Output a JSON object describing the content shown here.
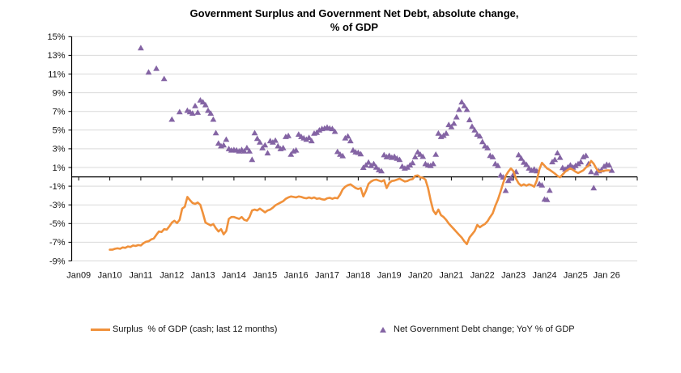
{
  "title": {
    "line1": "Government Surplus and Government Net Debt, absolute change,",
    "line2": "% of GDP"
  },
  "legend": {
    "surplus": {
      "label": "Surplus  % of GDP (cash; last 12 months)"
    },
    "debt": {
      "label": "Net Government Debt change; YoY % of GDP"
    }
  },
  "colors": {
    "surplus_line": "#F0913B",
    "debt_marker": "#8464A4",
    "gridline": "#D9D9D9",
    "axis": "#000000",
    "text": "#141414"
  },
  "chart_data": {
    "type": "combo-line-scatter",
    "title": "Government Surplus and Government Net Debt, absolute change, % of GDP",
    "x_unit": "months since Jan 2009",
    "x_tick_months": [
      0,
      12,
      24,
      36,
      48,
      60,
      72,
      84,
      96,
      108,
      120,
      132,
      144,
      156,
      168,
      180,
      192,
      204
    ],
    "x_tick_labels": [
      "Jan09",
      "Jan10",
      "Jan11",
      "Jan12",
      "Jan13",
      "Jan14",
      "Jan15",
      "Jan16",
      "Jan17",
      "Jan18",
      "Jan19",
      "Jan20",
      "Jan21",
      "Jan22",
      "Jan23",
      "Jan24",
      "Jan25",
      "Jan 26"
    ],
    "ylim": [
      -9,
      15
    ],
    "y_tick_step": 2,
    "y_tick_labels": [
      "15%",
      "13%",
      "11%",
      "9%",
      "7%",
      "5%",
      "3%",
      "1%",
      "-1%",
      "-3%",
      "-5%",
      "-7%",
      "-9%"
    ],
    "grid": true,
    "legend_position": "bottom",
    "series": [
      {
        "name": "Surplus % of GDP (cash; last 12 months)",
        "type": "line",
        "color": "#F0913B",
        "start_month": 12,
        "values": [
          -7.8,
          -7.8,
          -7.7,
          -7.65,
          -7.7,
          -7.55,
          -7.6,
          -7.45,
          -7.5,
          -7.35,
          -7.4,
          -7.3,
          -7.35,
          -7.1,
          -6.95,
          -6.9,
          -6.7,
          -6.6,
          -6.2,
          -5.85,
          -5.9,
          -5.6,
          -5.65,
          -5.3,
          -4.9,
          -4.7,
          -4.95,
          -4.6,
          -3.4,
          -3.2,
          -2.15,
          -2.5,
          -2.8,
          -2.9,
          -2.75,
          -3.0,
          -3.9,
          -4.9,
          -5.05,
          -5.2,
          -5.05,
          -5.5,
          -5.85,
          -5.6,
          -6.15,
          -5.8,
          -4.5,
          -4.3,
          -4.3,
          -4.4,
          -4.5,
          -4.3,
          -4.6,
          -4.7,
          -4.3,
          -3.6,
          -3.5,
          -3.6,
          -3.4,
          -3.6,
          -3.8,
          -3.6,
          -3.5,
          -3.3,
          -3.05,
          -2.9,
          -2.75,
          -2.6,
          -2.35,
          -2.2,
          -2.1,
          -2.15,
          -2.2,
          -2.1,
          -2.15,
          -2.25,
          -2.3,
          -2.2,
          -2.3,
          -2.2,
          -2.35,
          -2.3,
          -2.4,
          -2.45,
          -2.3,
          -2.25,
          -2.35,
          -2.25,
          -2.3,
          -1.9,
          -1.35,
          -1.05,
          -0.9,
          -0.8,
          -1.0,
          -1.2,
          -1.3,
          -1.2,
          -2.1,
          -1.5,
          -0.75,
          -0.5,
          -0.35,
          -0.3,
          -0.4,
          -0.5,
          -0.35,
          -1.2,
          -0.65,
          -0.45,
          -0.4,
          -0.3,
          -0.2,
          -0.35,
          -0.5,
          -0.45,
          -0.3,
          -0.25,
          0.1,
          0.15,
          -0.05,
          -0.1,
          -0.3,
          -1.2,
          -2.5,
          -3.6,
          -4.0,
          -3.5,
          -4.1,
          -4.3,
          -4.6,
          -5.0,
          -5.3,
          -5.6,
          -5.9,
          -6.2,
          -6.5,
          -6.9,
          -7.2,
          -6.5,
          -6.15,
          -5.8,
          -5.15,
          -5.4,
          -5.2,
          -5.05,
          -4.75,
          -4.3,
          -3.9,
          -3.1,
          -2.45,
          -1.6,
          -0.7,
          0.1,
          0.55,
          0.9,
          0.6,
          -0.2,
          -0.7,
          -0.95,
          -0.8,
          -0.95,
          -0.8,
          -0.9,
          -1.05,
          -0.4,
          0.8,
          1.5,
          1.2,
          0.9,
          0.75,
          0.55,
          0.35,
          0.1,
          -0.05,
          0.25,
          0.55,
          0.75,
          0.9,
          0.75,
          0.55,
          0.4,
          0.55,
          0.7,
          1.0,
          1.2,
          1.7,
          1.4,
          0.9,
          0.55,
          0.6,
          0.65,
          0.7,
          0.7
        ]
      },
      {
        "name": "Net Government Debt change; YoY % of GDP",
        "type": "scatter",
        "marker": "triangle",
        "color": "#8464A4",
        "points": [
          [
            24,
            13.8
          ],
          [
            27,
            11.2
          ],
          [
            30,
            11.6
          ],
          [
            33,
            10.5
          ],
          [
            36,
            6.15
          ],
          [
            39,
            6.95
          ],
          [
            42,
            7.1
          ],
          [
            43,
            6.95
          ],
          [
            44,
            6.8
          ],
          [
            45,
            7.6
          ],
          [
            46,
            6.9
          ],
          [
            47,
            8.2
          ],
          [
            48,
            8.0
          ],
          [
            49,
            7.7
          ],
          [
            50,
            7.1
          ],
          [
            51,
            6.8
          ],
          [
            52,
            6.15
          ],
          [
            53,
            4.7
          ],
          [
            54,
            3.6
          ],
          [
            55,
            3.3
          ],
          [
            56,
            3.4
          ],
          [
            57,
            4.0
          ],
          [
            58,
            3.0
          ],
          [
            59,
            2.85
          ],
          [
            60,
            2.9
          ],
          [
            61,
            2.85
          ],
          [
            62,
            2.75
          ],
          [
            63,
            2.9
          ],
          [
            64,
            2.75
          ],
          [
            65,
            3.1
          ],
          [
            66,
            2.75
          ],
          [
            67,
            1.85
          ],
          [
            68,
            4.7
          ],
          [
            69,
            4.1
          ],
          [
            70,
            3.7
          ],
          [
            71,
            3.1
          ],
          [
            72,
            3.4
          ],
          [
            73,
            2.55
          ],
          [
            74,
            3.85
          ],
          [
            75,
            3.7
          ],
          [
            76,
            3.9
          ],
          [
            77,
            3.3
          ],
          [
            78,
            3.0
          ],
          [
            79,
            3.1
          ],
          [
            80,
            4.3
          ],
          [
            81,
            4.4
          ],
          [
            82,
            2.4
          ],
          [
            83,
            2.75
          ],
          [
            84,
            2.85
          ],
          [
            85,
            4.55
          ],
          [
            86,
            4.3
          ],
          [
            87,
            4.15
          ],
          [
            88,
            4.0
          ],
          [
            89,
            4.2
          ],
          [
            90,
            3.85
          ],
          [
            91,
            4.65
          ],
          [
            92,
            4.75
          ],
          [
            93,
            5.0
          ],
          [
            94,
            5.15
          ],
          [
            95,
            5.2
          ],
          [
            96,
            5.3
          ],
          [
            97,
            5.2
          ],
          [
            98,
            5.15
          ],
          [
            99,
            4.85
          ],
          [
            100,
            2.7
          ],
          [
            101,
            2.4
          ],
          [
            102,
            2.25
          ],
          [
            103,
            4.15
          ],
          [
            104,
            4.35
          ],
          [
            105,
            3.85
          ],
          [
            106,
            2.85
          ],
          [
            107,
            2.65
          ],
          [
            108,
            2.6
          ],
          [
            109,
            2.45
          ],
          [
            110,
            1.0
          ],
          [
            111,
            1.26
          ],
          [
            112,
            1.55
          ],
          [
            113,
            1.2
          ],
          [
            114,
            1.4
          ],
          [
            115,
            1.03
          ],
          [
            116,
            0.75
          ],
          [
            117,
            0.63
          ],
          [
            118,
            2.35
          ],
          [
            119,
            2.13
          ],
          [
            120,
            2.27
          ],
          [
            121,
            2.07
          ],
          [
            122,
            2.18
          ],
          [
            123,
            1.98
          ],
          [
            124,
            1.84
          ],
          [
            125,
            1.12
          ],
          [
            126,
            0.92
          ],
          [
            127,
            1.03
          ],
          [
            128,
            1.26
          ],
          [
            129,
            1.49
          ],
          [
            130,
            2.13
          ],
          [
            131,
            2.65
          ],
          [
            132,
            2.4
          ],
          [
            133,
            2.18
          ],
          [
            134,
            1.4
          ],
          [
            135,
            1.26
          ],
          [
            136,
            1.2
          ],
          [
            137,
            1.4
          ],
          [
            138,
            2.4
          ],
          [
            139,
            4.66
          ],
          [
            140,
            4.3
          ],
          [
            141,
            4.43
          ],
          [
            142,
            4.66
          ],
          [
            143,
            5.58
          ],
          [
            144,
            5.35
          ],
          [
            145,
            5.72
          ],
          [
            146,
            6.4
          ],
          [
            147,
            7.2
          ],
          [
            148,
            8.0
          ],
          [
            149,
            7.6
          ],
          [
            150,
            7.2
          ],
          [
            151,
            6.1
          ],
          [
            152,
            5.4
          ],
          [
            153,
            5.0
          ],
          [
            154,
            4.55
          ],
          [
            155,
            4.35
          ],
          [
            156,
            3.75
          ],
          [
            157,
            3.3
          ],
          [
            158,
            3.1
          ],
          [
            159,
            2.27
          ],
          [
            160,
            2.13
          ],
          [
            161,
            1.4
          ],
          [
            162,
            1.2
          ],
          [
            163,
            0.17
          ],
          [
            164,
            -0.03
          ],
          [
            165,
            -1.47
          ],
          [
            166,
            -0.4
          ],
          [
            167,
            -0.17
          ],
          [
            168,
            0.26
          ],
          [
            169,
            0.54
          ],
          [
            170,
            2.35
          ],
          [
            171,
            1.98
          ],
          [
            172,
            1.55
          ],
          [
            173,
            1.32
          ],
          [
            174,
            0.92
          ],
          [
            175,
            0.69
          ],
          [
            176,
            0.83
          ],
          [
            177,
            0.63
          ],
          [
            178,
            -0.75
          ],
          [
            179,
            -0.89
          ],
          [
            180,
            -2.4
          ],
          [
            181,
            -2.45
          ],
          [
            182,
            -1.45
          ],
          [
            183,
            1.6
          ],
          [
            184,
            1.84
          ],
          [
            185,
            2.56
          ],
          [
            186,
            2.07
          ],
          [
            187,
            0.97
          ],
          [
            188,
            0.83
          ],
          [
            189,
            1.03
          ],
          [
            190,
            1.26
          ],
          [
            191,
            1.03
          ],
          [
            192,
            1.2
          ],
          [
            193,
            1.4
          ],
          [
            194,
            1.6
          ],
          [
            195,
            2.13
          ],
          [
            196,
            2.27
          ],
          [
            197,
            1.4
          ],
          [
            198,
            0.54
          ],
          [
            199,
            -1.18
          ],
          [
            200,
            0.4
          ],
          [
            201,
            0.63
          ],
          [
            202,
            0.75
          ],
          [
            203,
            1.12
          ],
          [
            204,
            1.32
          ],
          [
            205,
            1.26
          ],
          [
            206,
            0.69
          ]
        ]
      }
    ]
  }
}
